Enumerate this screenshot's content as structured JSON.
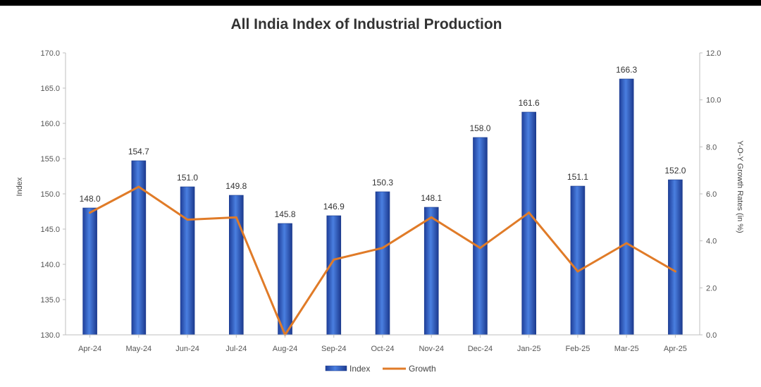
{
  "chart_data": {
    "type": "bar",
    "title": "All India Index of Industrial Production",
    "ylabel": "Index",
    "y2label": "Y-O-Y Growth Rates (in %)",
    "categories": [
      "Apr-24",
      "May-24",
      "Jun-24",
      "Jul-24",
      "Aug-24",
      "Sep-24",
      "Oct-24",
      "Nov-24",
      "Dec-24",
      "Jan-25",
      "Feb-25",
      "Mar-25",
      "Apr-25"
    ],
    "series": [
      {
        "name": "Index",
        "type": "bar",
        "axis": "left",
        "values": [
          148.0,
          154.7,
          151.0,
          149.8,
          145.8,
          146.9,
          150.3,
          148.1,
          158.0,
          161.6,
          151.1,
          166.3,
          152.0
        ],
        "labels": [
          "148.0",
          "154.7",
          "151.0",
          "149.8",
          "145.8",
          "146.9",
          "150.3",
          "148.1",
          "158.0",
          "161.6",
          "151.1",
          "166.3",
          "152.0"
        ],
        "color": "#2e5fc4"
      },
      {
        "name": "Growth",
        "type": "line",
        "axis": "right",
        "values": [
          5.2,
          6.3,
          4.9,
          5.0,
          0.0,
          3.2,
          3.7,
          5.0,
          3.7,
          5.2,
          2.7,
          3.9,
          2.7
        ],
        "color": "#e07b28"
      }
    ],
    "ylim": [
      130,
      170
    ],
    "yticks": [
      "130.0",
      "135.0",
      "140.0",
      "145.0",
      "150.0",
      "155.0",
      "160.0",
      "165.0",
      "170.0"
    ],
    "y2lim": [
      0,
      12
    ],
    "y2ticks": [
      "0.0",
      "2.0",
      "4.0",
      "6.0",
      "8.0",
      "10.0",
      "12.0"
    ],
    "legend_position": "bottom",
    "grid": false
  }
}
